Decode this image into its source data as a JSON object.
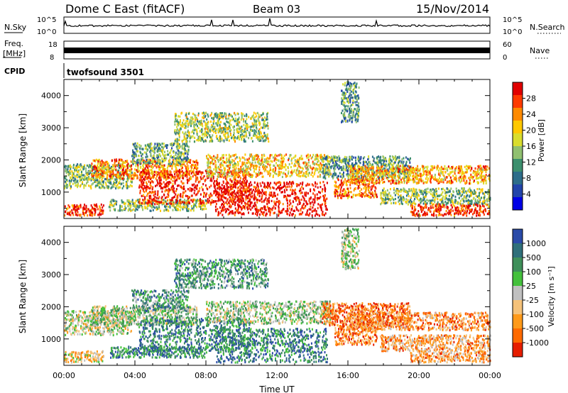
{
  "header": {
    "station": "Dome C East (fitACF)",
    "beam": "Beam 03",
    "date": "15/Nov/2014"
  },
  "top_panels": {
    "nsky_label": "N.Sky",
    "nsearch_label": "N.Search",
    "noise_ticks": [
      "10^5",
      "10^0"
    ],
    "freq_label": "Freq.",
    "freq_unit": "[MHz]",
    "freq_ticks": [
      "18",
      "8"
    ],
    "nave_label": "Nave",
    "nave_ticks": [
      "60",
      "0"
    ],
    "cpid_label": "CPID",
    "cpid_value": "twofsound 3501"
  },
  "chart_data": [
    {
      "type": "heatmap",
      "name": "power",
      "ylabel": "Slant Range [km]",
      "ylim": [
        180,
        4500
      ],
      "yticks": [
        "1000",
        "2000",
        "3000",
        "4000"
      ],
      "xlim": [
        0,
        24
      ],
      "colorbar": {
        "label": "Power [dB]",
        "ticks": [
          "28",
          "24",
          "20",
          "16",
          "12",
          "8",
          "4"
        ],
        "colors": [
          "#e10000",
          "#ff3a00",
          "#ff8a00",
          "#ffc800",
          "#d9dd2e",
          "#90c070",
          "#3c8f6e",
          "#2d6d8a",
          "#2244aa",
          "#0000e6"
        ]
      },
      "regions": [
        {
          "t": [
            0.0,
            2.2
          ],
          "r": [
            300,
            650
          ],
          "level": 0.88
        },
        {
          "t": [
            0.0,
            3.8
          ],
          "r": [
            1150,
            1900
          ],
          "level": 0.45
        },
        {
          "t": [
            1.5,
            7.5
          ],
          "r": [
            1450,
            2050
          ],
          "level": 0.75
        },
        {
          "t": [
            2.5,
            8.0
          ],
          "r": [
            450,
            800
          ],
          "level": 0.45
        },
        {
          "t": [
            4.2,
            10.5
          ],
          "r": [
            650,
            1700
          ],
          "level": 0.92
        },
        {
          "t": [
            8.5,
            14.8
          ],
          "r": [
            300,
            1350
          ],
          "level": 0.95
        },
        {
          "t": [
            8.0,
            15.0
          ],
          "r": [
            1500,
            2200
          ],
          "level": 0.62
        },
        {
          "t": [
            6.2,
            11.5
          ],
          "r": [
            2600,
            3500
          ],
          "level": 0.5
        },
        {
          "t": [
            3.8,
            7.0
          ],
          "r": [
            1900,
            2550
          ],
          "level": 0.38
        },
        {
          "t": [
            15.2,
            17.6
          ],
          "r": [
            850,
            1450
          ],
          "level": 0.8
        },
        {
          "t": [
            14.5,
            19.5
          ],
          "r": [
            1450,
            2150
          ],
          "level": 0.35
        },
        {
          "t": [
            16.0,
            24.0
          ],
          "r": [
            1300,
            1850
          ],
          "level": 0.7
        },
        {
          "t": [
            17.8,
            24.0
          ],
          "r": [
            650,
            1150
          ],
          "level": 0.45
        },
        {
          "t": [
            19.5,
            24.0
          ],
          "r": [
            300,
            650
          ],
          "level": 0.9
        },
        {
          "t": [
            15.6,
            16.6
          ],
          "r": [
            3200,
            4450
          ],
          "level": 0.35
        }
      ]
    },
    {
      "type": "heatmap",
      "name": "velocity",
      "ylabel": "Slant Range [km]",
      "ylim": [
        180,
        4500
      ],
      "yticks": [
        "1000",
        "2000",
        "3000",
        "4000"
      ],
      "xlim": [
        0,
        24
      ],
      "xticks": [
        "00:00",
        "04:00",
        "08:00",
        "12:00",
        "16:00",
        "20:00",
        "00:00"
      ],
      "xlabel": "Time UT",
      "colorbar": {
        "label": "Velocity [m s⁻¹]",
        "ticks": [
          "1000",
          "500",
          "100",
          "25",
          "-25",
          "-100",
          "-500",
          "-1000"
        ],
        "colors": [
          "#2a4aa8",
          "#2f6f7a",
          "#3f8f5a",
          "#44c03c",
          "#c0c0c0",
          "#f5c27a",
          "#ff9a1a",
          "#ff6a00",
          "#e61e00"
        ]
      },
      "regions": [
        {
          "t": [
            0.0,
            2.2
          ],
          "r": [
            300,
            650
          ],
          "level": 0.4
        },
        {
          "t": [
            0.0,
            3.8
          ],
          "r": [
            1150,
            1900
          ],
          "level": 0.5
        },
        {
          "t": [
            1.5,
            7.5
          ],
          "r": [
            1450,
            2050
          ],
          "level": 0.55
        },
        {
          "t": [
            2.5,
            8.0
          ],
          "r": [
            450,
            800
          ],
          "level": 0.78
        },
        {
          "t": [
            4.2,
            10.5
          ],
          "r": [
            650,
            1700
          ],
          "level": 0.78
        },
        {
          "t": [
            8.5,
            14.8
          ],
          "r": [
            300,
            1350
          ],
          "level": 0.8
        },
        {
          "t": [
            8.0,
            15.0
          ],
          "r": [
            1500,
            2200
          ],
          "level": 0.55
        },
        {
          "t": [
            6.2,
            11.5
          ],
          "r": [
            2600,
            3500
          ],
          "level": 0.7
        },
        {
          "t": [
            3.8,
            7.0
          ],
          "r": [
            1900,
            2550
          ],
          "level": 0.72
        },
        {
          "t": [
            15.2,
            17.6
          ],
          "r": [
            850,
            1450
          ],
          "level": 0.22
        },
        {
          "t": [
            14.5,
            19.5
          ],
          "r": [
            1450,
            2150
          ],
          "level": 0.2
        },
        {
          "t": [
            16.0,
            24.0
          ],
          "r": [
            1300,
            1850
          ],
          "level": 0.25
        },
        {
          "t": [
            17.8,
            24.0
          ],
          "r": [
            650,
            1150
          ],
          "level": 0.3
        },
        {
          "t": [
            19.5,
            24.0
          ],
          "r": [
            300,
            650
          ],
          "level": 0.3
        },
        {
          "t": [
            15.6,
            16.6
          ],
          "r": [
            3200,
            4450
          ],
          "level": 0.55
        }
      ]
    }
  ]
}
